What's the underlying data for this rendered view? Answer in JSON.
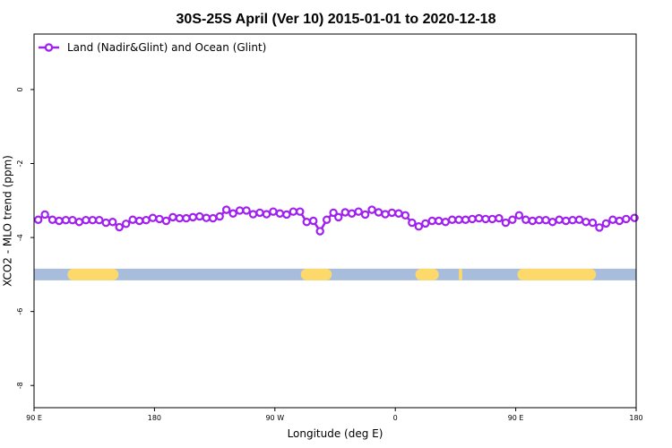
{
  "chart_data": {
    "type": "line",
    "title": "30S-25S April (Ver 10)   2015-01-01 to 2020-12-18",
    "xlabel": "Longitude (deg E)",
    "ylabel": "XCO2 - MLO trend (ppm)",
    "xlim": [
      90,
      450
    ],
    "ylim": [
      -8.6,
      1.5
    ],
    "x_ticks": [
      {
        "value": 90,
        "label": "90 E"
      },
      {
        "value": 162,
        "label": "180"
      },
      {
        "value": 234,
        "label": "90 W"
      },
      {
        "value": 306,
        "label": "0"
      },
      {
        "value": 378,
        "label": "90 E"
      },
      {
        "value": 450,
        "label": "180"
      }
    ],
    "y_ticks": [
      {
        "value": 0,
        "label": "0"
      },
      {
        "value": -2,
        "label": "-2"
      },
      {
        "value": -4,
        "label": "-4"
      },
      {
        "value": -6,
        "label": "-6"
      },
      {
        "value": -8,
        "label": "-8"
      }
    ],
    "grid": false,
    "legend_position": "top-left",
    "series": [
      {
        "name": "Land (Nadir&Glint) and Ocean (Glint)",
        "color": "#a020f0",
        "marker": "open-circle",
        "x": [
          92.5,
          96.5,
          101,
          105,
          109,
          113,
          117,
          121,
          125,
          129,
          133,
          137,
          141,
          145,
          149,
          153,
          157,
          161,
          165,
          169,
          173,
          177,
          181,
          185,
          189,
          193,
          197,
          201,
          205,
          209,
          213,
          217,
          221,
          225,
          229,
          233,
          237,
          241,
          245,
          249,
          253,
          257,
          261,
          265,
          269,
          272,
          276,
          280,
          284,
          288,
          292,
          296,
          300,
          304,
          308,
          312,
          316,
          320,
          324,
          328,
          332,
          336,
          340,
          344,
          348,
          352,
          356,
          360,
          364,
          368,
          372,
          376,
          380,
          384,
          388,
          392,
          396,
          400,
          404,
          408,
          412,
          416,
          420,
          424,
          428,
          432,
          436,
          440,
          444,
          449
        ],
        "y": [
          -3.52,
          -3.38,
          -3.52,
          -3.55,
          -3.53,
          -3.53,
          -3.58,
          -3.53,
          -3.53,
          -3.53,
          -3.6,
          -3.58,
          -3.72,
          -3.63,
          -3.52,
          -3.55,
          -3.53,
          -3.47,
          -3.5,
          -3.55,
          -3.45,
          -3.48,
          -3.48,
          -3.45,
          -3.43,
          -3.47,
          -3.48,
          -3.43,
          -3.25,
          -3.35,
          -3.27,
          -3.27,
          -3.37,
          -3.33,
          -3.37,
          -3.3,
          -3.35,
          -3.38,
          -3.3,
          -3.3,
          -3.58,
          -3.55,
          -3.83,
          -3.52,
          -3.33,
          -3.45,
          -3.32,
          -3.35,
          -3.3,
          -3.38,
          -3.25,
          -3.32,
          -3.37,
          -3.33,
          -3.35,
          -3.4,
          -3.6,
          -3.7,
          -3.62,
          -3.55,
          -3.55,
          -3.58,
          -3.52,
          -3.52,
          -3.52,
          -3.5,
          -3.48,
          -3.5,
          -3.5,
          -3.48,
          -3.6,
          -3.52,
          -3.4,
          -3.52,
          -3.55,
          -3.53,
          -3.53,
          -3.58,
          -3.52,
          -3.55,
          -3.53,
          -3.52,
          -3.58,
          -3.6,
          -3.73,
          -3.62,
          -3.52,
          -3.55,
          -3.5,
          -3.47
        ]
      }
    ],
    "surface_band": {
      "y": -5.0,
      "ocean_color": "#a7bddb",
      "land_color": "#fcd96a",
      "land_segments": [
        [
          110,
          140.5
        ],
        [
          249.5,
          268
        ],
        [
          318,
          332
        ],
        [
          344,
          346
        ],
        [
          379,
          426
        ]
      ]
    }
  }
}
